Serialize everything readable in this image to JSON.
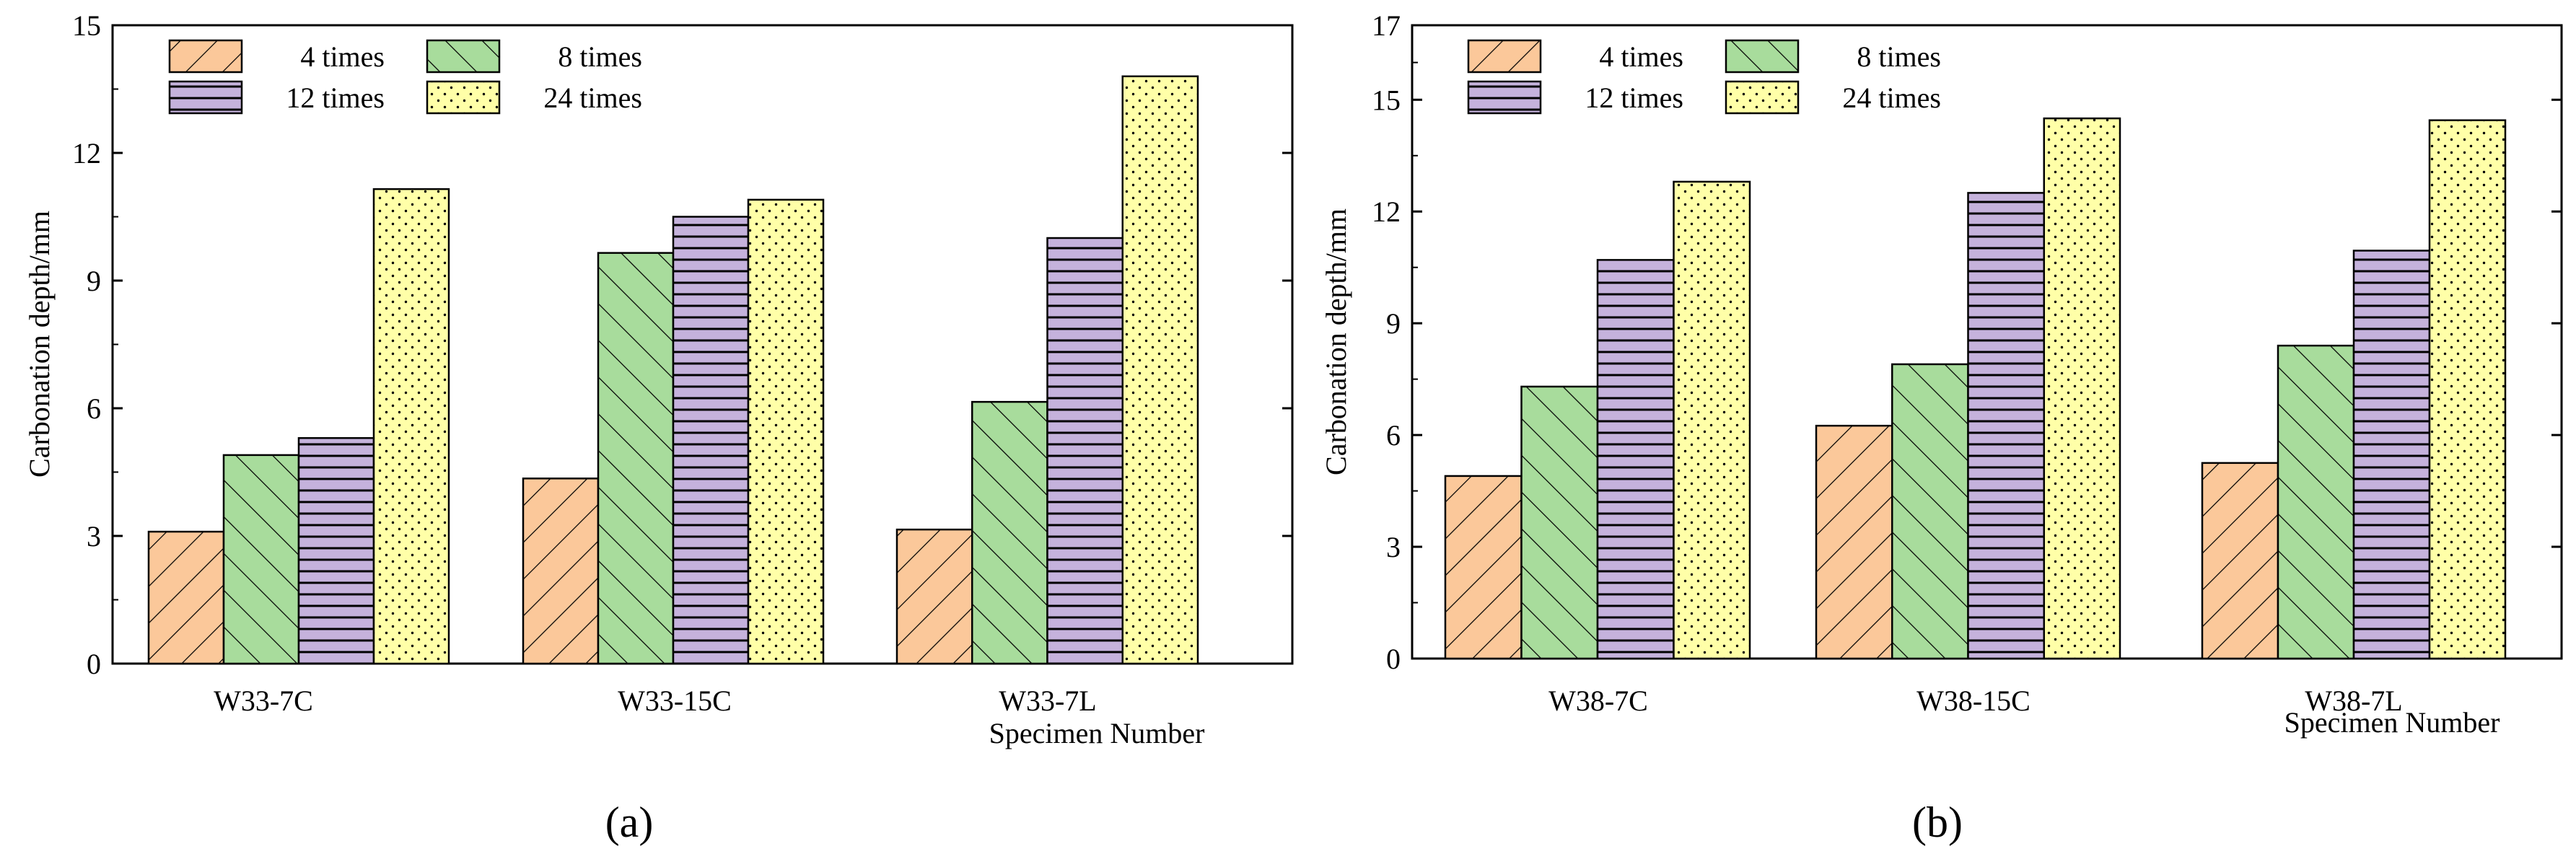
{
  "series": [
    {
      "name": "4 times",
      "color": "#fbc89a",
      "pattern": "diag-forward"
    },
    {
      "name": "8 times",
      "color": "#a8dc9c",
      "pattern": "diag-back"
    },
    {
      "name": "12 times",
      "color": "#c5b2dc",
      "pattern": "horizontal"
    },
    {
      "name": "24 times",
      "color": "#ffffa8",
      "pattern": "dots"
    }
  ],
  "chart_data": [
    {
      "panel_label": "(a)",
      "type": "bar",
      "ylabel": "Carbonation depth/mm",
      "xlabel": "Specimen Number",
      "ylim": [
        0,
        15
      ],
      "yticks": [
        0,
        3,
        6,
        9,
        12,
        15
      ],
      "categories": [
        "W33-7C",
        "W33-15C",
        "W33-7L"
      ],
      "series": [
        {
          "name": "4 times",
          "values": [
            3.1,
            4.35,
            3.15
          ]
        },
        {
          "name": "8 times",
          "values": [
            4.9,
            9.65,
            6.15
          ]
        },
        {
          "name": "12 times",
          "values": [
            5.3,
            10.5,
            10.0
          ]
        },
        {
          "name": "24 times",
          "values": [
            11.15,
            10.9,
            13.8
          ]
        }
      ],
      "legend": "top-left"
    },
    {
      "panel_label": "(b)",
      "type": "bar",
      "ylabel": "Carbonation depth/mm",
      "xlabel": "Specimen Number",
      "ylim": [
        0,
        17
      ],
      "yticks": [
        0,
        3,
        6,
        9,
        12,
        15,
        17
      ],
      "categories": [
        "W38-7C",
        "W38-15C",
        "W38-7L"
      ],
      "series": [
        {
          "name": "4 times",
          "values": [
            4.9,
            6.25,
            5.25
          ]
        },
        {
          "name": "8 times",
          "values": [
            7.3,
            7.9,
            8.4
          ]
        },
        {
          "name": "12 times",
          "values": [
            10.7,
            12.5,
            10.95
          ]
        },
        {
          "name": "24 times",
          "values": [
            12.8,
            14.5,
            14.45
          ]
        }
      ],
      "legend": "top-left"
    }
  ]
}
